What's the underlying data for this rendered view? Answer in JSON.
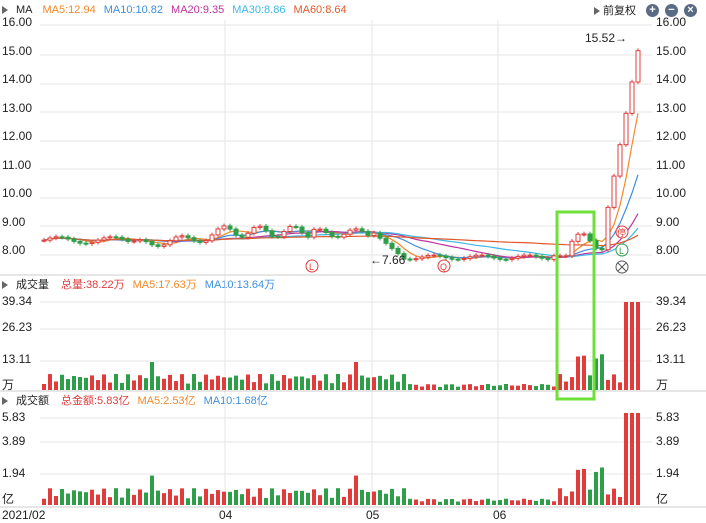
{
  "price_panel": {
    "symbol": "MA",
    "ma": [
      {
        "label": "MA5:12.94",
        "color": "#f0892a"
      },
      {
        "label": "MA10:10.82",
        "color": "#3d8fe0"
      },
      {
        "label": "MA20:9.35",
        "color": "#c0339d"
      },
      {
        "label": "MA30:8.86",
        "color": "#3cb8e6"
      },
      {
        "label": "MA60:8.64",
        "color": "#e0592a"
      }
    ],
    "adjust_label": "前复权",
    "axis_labels": [
      "16.00",
      "15.00",
      "14.00",
      "13.00",
      "12.00",
      "11.00",
      "10.00",
      "9.00",
      "8.00"
    ],
    "high_annotation": "15.52→",
    "low_annotation": "←7.66",
    "markers": {
      "L": "L",
      "Q": "Q",
      "zt": "停"
    }
  },
  "volume_panel": {
    "title": "成交量",
    "total": "总量:38.22万",
    "ma5": "MA5:17.63万",
    "ma10": "MA10:13.64万",
    "axis_labels": [
      "39.34",
      "26.23",
      "13.11"
    ],
    "unit": "万"
  },
  "amount_panel": {
    "title": "成交额",
    "total": "总金额:5.83亿",
    "ma5": "MA5:2.53亿",
    "ma10": "MA10:1.68亿",
    "axis_labels": [
      "5.83",
      "3.89",
      "1.94"
    ],
    "unit": "亿"
  },
  "x_axis": [
    "2021/02",
    "04",
    "05",
    "06"
  ],
  "colors": {
    "up": "#e03c3c",
    "down": "#2f9e48",
    "highlight": "#6fe03a",
    "grid": "#e6e6e6"
  }
}
